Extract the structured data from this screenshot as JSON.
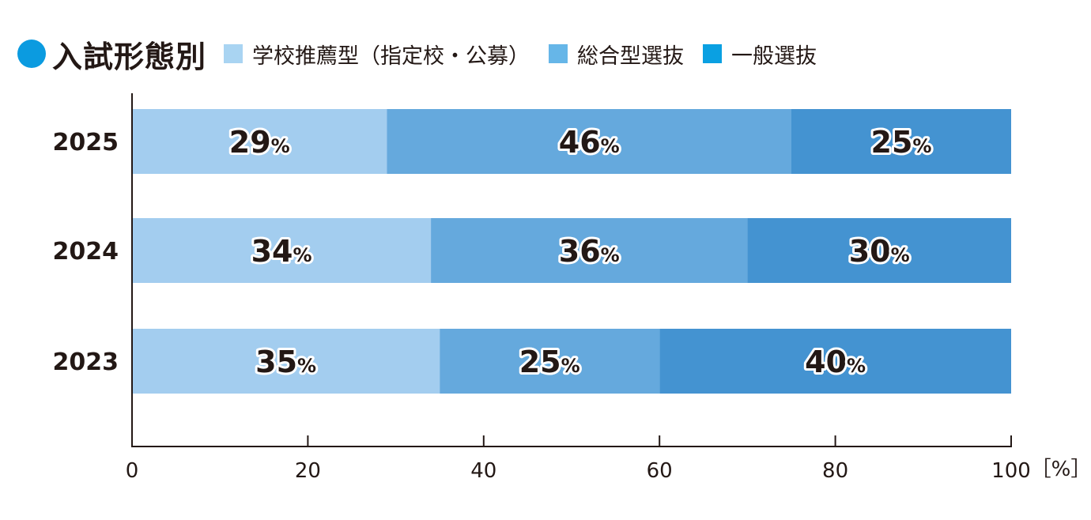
{
  "header": {
    "title": "入試形態別"
  },
  "chart_data": {
    "type": "bar",
    "orientation": "horizontal",
    "stacked": true,
    "title": "入試形態別",
    "categories": [
      "2025",
      "2024",
      "2023"
    ],
    "series": [
      {
        "name": "学校推薦型（指定校・公募）",
        "color": "#a3cdef",
        "values": [
          29,
          34,
          35
        ]
      },
      {
        "name": "総合型選抜",
        "color": "#65a9dd",
        "values": [
          46,
          36,
          25
        ]
      },
      {
        "name": "一般選抜",
        "color": "#4493d1",
        "values": [
          25,
          30,
          40
        ]
      }
    ],
    "xlim": [
      0,
      100
    ],
    "xticks": [
      "0",
      "20",
      "40",
      "60",
      "80",
      "100"
    ],
    "xunit": "［%］",
    "data_label_suffix": "%",
    "legend_position": "top",
    "grid": false
  }
}
